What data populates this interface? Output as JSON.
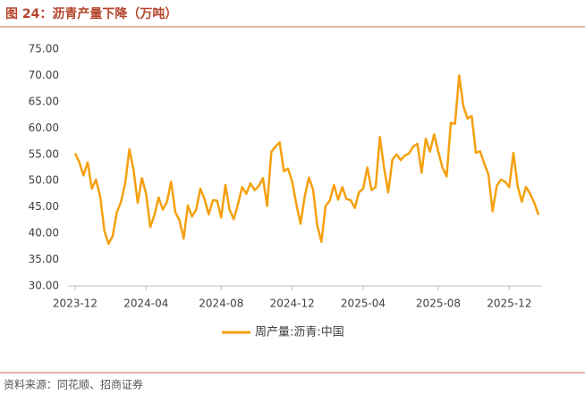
{
  "title": "图 24：沥青产量下降（万吨）",
  "source": "资料来源：同花顺、招商证券",
  "chart_data": {
    "type": "line",
    "categories": [
      "2023-12",
      null,
      null,
      null,
      null,
      null,
      null,
      null,
      null,
      null,
      null,
      null,
      null,
      null,
      null,
      null,
      null,
      "2024-04",
      null,
      null,
      null,
      null,
      null,
      null,
      null,
      null,
      null,
      null,
      null,
      null,
      null,
      null,
      null,
      null,
      null,
      "2024-08",
      null,
      null,
      null,
      null,
      null,
      null,
      null,
      null,
      null,
      null,
      null,
      null,
      null,
      null,
      null,
      null,
      "2024-12",
      null,
      null,
      null,
      null,
      null,
      null,
      null,
      null,
      null,
      null,
      null,
      null,
      null,
      null,
      null,
      null,
      "2025-04",
      null,
      null,
      null,
      null,
      null,
      null,
      null,
      null,
      null,
      null,
      null,
      null,
      null,
      null,
      null,
      null,
      null,
      "2025-08",
      null,
      null,
      null,
      null,
      null,
      null,
      null,
      null,
      null,
      null,
      null,
      null,
      null,
      null,
      null,
      null,
      "2025-12",
      null,
      null,
      null,
      null,
      null,
      null,
      null
    ],
    "series": [
      {
        "name": "周产量:沥青:中国",
        "color": "#f5a00f",
        "values": [
          55.2,
          53.5,
          51,
          53.5,
          48.5,
          50.2,
          47,
          40.5,
          38,
          39.5,
          44,
          46,
          49.5,
          56,
          52,
          45.8,
          50.5,
          47.5,
          41.2,
          43.5,
          46.8,
          44.5,
          46,
          49.8,
          44,
          42.5,
          39,
          45.3,
          43.2,
          44.5,
          48.5,
          46.5,
          43.6,
          46.3,
          46.2,
          43,
          49.2,
          44.5,
          42.7,
          45.5,
          48.8,
          47.5,
          49.5,
          48.2,
          49,
          50.5,
          45.2,
          55.5,
          56.5,
          57.3,
          51.8,
          52.3,
          49.8,
          45.5,
          41.8,
          47,
          50.6,
          48.3,
          41.5,
          38.4,
          45.2,
          46.2,
          49.2,
          46.4,
          48.8,
          46.5,
          46.3,
          44.8,
          47.8,
          48.5,
          52.5,
          48.2,
          48.8,
          58.3,
          52.5,
          47.8,
          54,
          55,
          53.9,
          54.8,
          55.2,
          56.5,
          57,
          51.5,
          58,
          55.5,
          58.8,
          55.5,
          52.5,
          50.8,
          61,
          60.8,
          70,
          64.2,
          61.8,
          62.3,
          55.3,
          55.6,
          53.3,
          51.2,
          44.2,
          49,
          50.2,
          49.8,
          48.8,
          55.3,
          49,
          46,
          48.8,
          47.5,
          45.8,
          43.5
        ]
      }
    ],
    "ylim": [
      30,
      75
    ],
    "yticks": [
      {
        "value": 30,
        "label": "30.00"
      },
      {
        "value": 35,
        "label": "35.00"
      },
      {
        "value": 40,
        "label": "40.00"
      },
      {
        "value": 45,
        "label": "45.00"
      },
      {
        "value": 50,
        "label": "50.00"
      },
      {
        "value": 55,
        "label": "55.00"
      },
      {
        "value": 60,
        "label": "60.00"
      },
      {
        "value": 65,
        "label": "65.00"
      },
      {
        "value": 70,
        "label": "70.00"
      },
      {
        "value": 75,
        "label": "75.00"
      }
    ],
    "grid": false,
    "legend": "bottom"
  }
}
